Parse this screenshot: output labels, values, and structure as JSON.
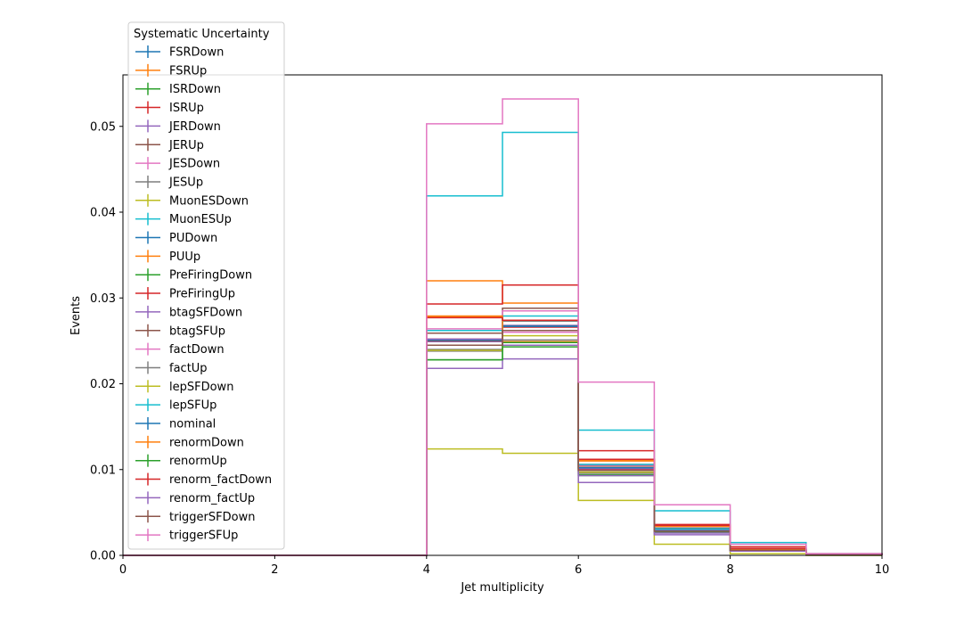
{
  "chart_data": {
    "type": "line",
    "step": true,
    "xlabel": "Jet multiplicity",
    "ylabel": "Events",
    "xlim": [
      0,
      10
    ],
    "ylim": [
      0,
      0.056
    ],
    "xticks": [
      "0",
      "2",
      "4",
      "6",
      "8",
      "10"
    ],
    "yticks": [
      "0.00",
      "0.01",
      "0.02",
      "0.03",
      "0.04",
      "0.05"
    ],
    "bin_edges": [
      0,
      1,
      2,
      3,
      4,
      5,
      6,
      7,
      8,
      9,
      10
    ],
    "grid": false,
    "legend": {
      "title": "Systematic Uncertainty",
      "placement": "upper-left, outside plot area"
    },
    "series": [
      {
        "name": "FSRDown",
        "color": "#1f77b4",
        "values": [
          0,
          0,
          0,
          0,
          0.0251,
          0.0267,
          0.0101,
          0.0029,
          0.0006,
          0.0001
        ]
      },
      {
        "name": "FSRUp",
        "color": "#ff7f0e",
        "values": [
          0,
          0,
          0,
          0,
          0.0278,
          0.026,
          0.011,
          0.0032,
          0.0007,
          0.0001
        ]
      },
      {
        "name": "ISRDown",
        "color": "#2ca02c",
        "values": [
          0,
          0,
          0,
          0,
          0.025,
          0.0268,
          0.0102,
          0.0029,
          0.0006,
          0.0001
        ]
      },
      {
        "name": "ISRUp",
        "color": "#d62728",
        "values": [
          0,
          0,
          0,
          0,
          0.0252,
          0.0266,
          0.01,
          0.0029,
          0.0006,
          0.0001
        ]
      },
      {
        "name": "JERDown",
        "color": "#9467bd",
        "values": [
          0,
          0,
          0,
          0,
          0.0249,
          0.0268,
          0.0101,
          0.0029,
          0.0006,
          0.0001
        ]
      },
      {
        "name": "JERUp",
        "color": "#8c564b",
        "values": [
          0,
          0,
          0,
          0,
          0.025,
          0.0267,
          0.0102,
          0.0029,
          0.0006,
          0.0001
        ]
      },
      {
        "name": "JESDown",
        "color": "#e377c2",
        "values": [
          0,
          0,
          0,
          0,
          0.0262,
          0.026,
          0.0096,
          0.0027,
          0.0005,
          0.0001
        ]
      },
      {
        "name": "JESUp",
        "color": "#7f7f7f",
        "values": [
          0,
          0,
          0,
          0,
          0.024,
          0.0273,
          0.0106,
          0.0031,
          0.0007,
          0.0001
        ]
      },
      {
        "name": "MuonESDown",
        "color": "#bcbd22",
        "values": [
          0,
          0,
          0,
          0,
          0.0124,
          0.0119,
          0.0064,
          0.0013,
          0.0002,
          0.0
        ]
      },
      {
        "name": "MuonESUp",
        "color": "#17becf",
        "values": [
          0,
          0,
          0,
          0,
          0.0419,
          0.0493,
          0.0146,
          0.0052,
          0.0015,
          0.0002
        ]
      },
      {
        "name": "PUDown",
        "color": "#1f77b4",
        "values": [
          0,
          0,
          0,
          0,
          0.0251,
          0.0267,
          0.0102,
          0.0029,
          0.0006,
          0.0001
        ]
      },
      {
        "name": "PUUp",
        "color": "#ff7f0e",
        "values": [
          0,
          0,
          0,
          0,
          0.032,
          0.0294,
          0.0112,
          0.0034,
          0.0008,
          0.0001
        ]
      },
      {
        "name": "PreFiringDown",
        "color": "#2ca02c",
        "values": [
          0,
          0,
          0,
          0,
          0.0228,
          0.0243,
          0.0093,
          0.0027,
          0.0006,
          0.0001
        ]
      },
      {
        "name": "PreFiringUp",
        "color": "#d62728",
        "values": [
          0,
          0,
          0,
          0,
          0.0293,
          0.0315,
          0.0122,
          0.0036,
          0.001,
          0.0002
        ]
      },
      {
        "name": "btagSFDown",
        "color": "#9467bd",
        "values": [
          0,
          0,
          0,
          0,
          0.0218,
          0.0229,
          0.0085,
          0.0024,
          0.0005,
          0.0001
        ]
      },
      {
        "name": "btagSFUp",
        "color": "#8c564b",
        "values": [
          0,
          0,
          0,
          0,
          0.0259,
          0.0288,
          0.0104,
          0.0032,
          0.0008,
          0.0001
        ]
      },
      {
        "name": "factDown",
        "color": "#e377c2",
        "values": [
          0,
          0,
          0,
          0,
          0.0264,
          0.0285,
          0.0105,
          0.003,
          0.0007,
          0.0001
        ]
      },
      {
        "name": "factUp",
        "color": "#7f7f7f",
        "values": [
          0,
          0,
          0,
          0,
          0.0238,
          0.0251,
          0.0096,
          0.0027,
          0.0006,
          0.0001
        ]
      },
      {
        "name": "lepSFDown",
        "color": "#bcbd22",
        "values": [
          0,
          0,
          0,
          0,
          0.0239,
          0.0256,
          0.0097,
          0.0028,
          0.0006,
          0.0001
        ]
      },
      {
        "name": "lepSFUp",
        "color": "#17becf",
        "values": [
          0,
          0,
          0,
          0,
          0.0262,
          0.0279,
          0.0106,
          0.0031,
          0.0007,
          0.0001
        ]
      },
      {
        "name": "nominal",
        "color": "#1f77b4",
        "values": [
          0,
          0,
          0,
          0,
          0.0251,
          0.0267,
          0.0102,
          0.0029,
          0.0006,
          0.0001
        ]
      },
      {
        "name": "renormDown",
        "color": "#ff7f0e",
        "values": [
          0,
          0,
          0,
          0,
          0.0279,
          0.0249,
          0.0111,
          0.0034,
          0.0007,
          0.0001
        ]
      },
      {
        "name": "renormUp",
        "color": "#2ca02c",
        "values": [
          0,
          0,
          0,
          0,
          0.0228,
          0.0248,
          0.0094,
          0.0027,
          0.0006,
          0.0001
        ]
      },
      {
        "name": "renorm_factDown",
        "color": "#d62728",
        "values": [
          0,
          0,
          0,
          0,
          0.0277,
          0.0274,
          0.0112,
          0.0035,
          0.0008,
          0.0001
        ]
      },
      {
        "name": "renorm_factUp",
        "color": "#9467bd",
        "values": [
          0,
          0,
          0,
          0,
          0.0252,
          0.0245,
          0.0093,
          0.0026,
          0.0005,
          0.0001
        ]
      },
      {
        "name": "triggerSFDown",
        "color": "#8c564b",
        "values": [
          0,
          0,
          0,
          0,
          0.0245,
          0.0262,
          0.0099,
          0.0028,
          0.0006,
          0.0001
        ]
      },
      {
        "name": "triggerSFUp",
        "color": "#e377c2",
        "values": [
          0,
          0,
          0,
          0,
          0.0503,
          0.0532,
          0.0202,
          0.0059,
          0.0013,
          0.0002
        ]
      }
    ]
  }
}
